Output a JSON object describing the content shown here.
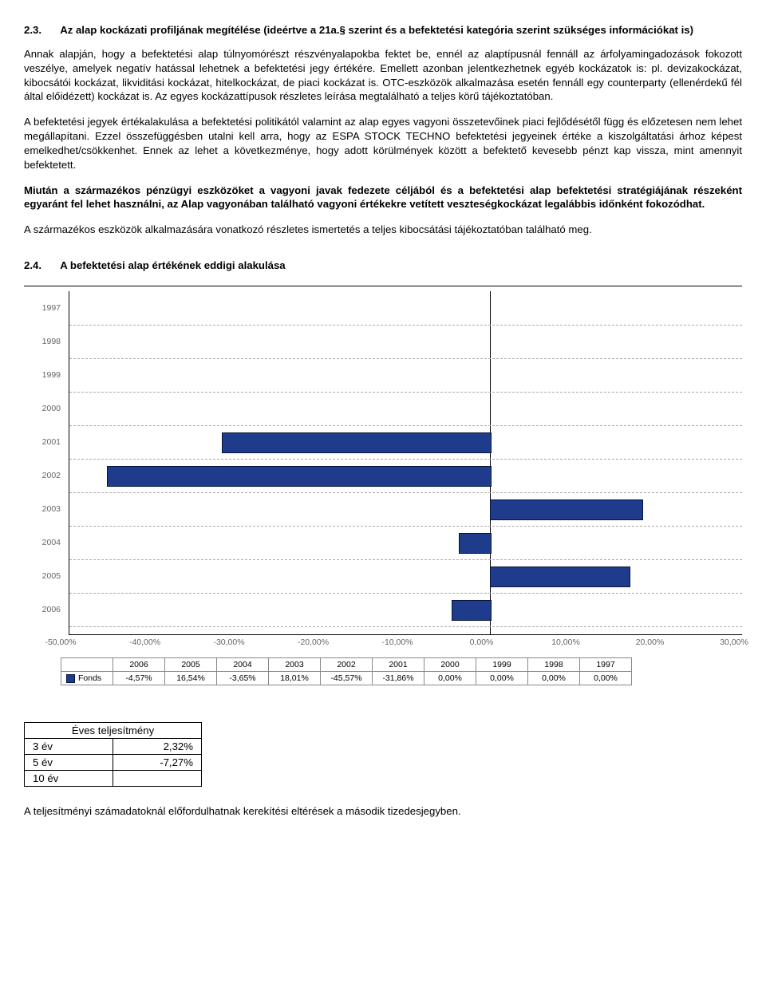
{
  "section23": {
    "num": "2.3.",
    "title": "Az alap kockázati profiljának megítélése (ideértve a 21a.§ szerint és a befektetési kategória szerint szükséges információkat is)",
    "p1": "Annak alapján, hogy a befektetési alap túlnyomórészt részvényalapokba fektet be, ennél az alaptípusnál fennáll az árfolyamingadozások fokozott veszélye, amelyek negatív hatással lehetnek a befektetési jegy értékére. Emellett azonban jelentkezhetnek egyéb kockázatok is: pl. devizakockázat, kibocsátói kockázat, likviditási kockázat, hitelkockázat, de piaci kockázat is. OTC-eszközök alkalmazása esetén fennáll egy counterparty (ellenérdekű fél által előidézett) kockázat is. Az egyes kockázattípusok részletes leírása megtalálható a teljes körű tájékoztatóban.",
    "p2": "A befektetési jegyek értékalakulása a befektetési politikától valamint az alap egyes vagyoni összetevőinek piaci fejlődésétől függ és előzetesen nem lehet megállapítani. Ezzel összefüggésben utalni kell arra, hogy az ESPA STOCK TECHNO befektetési jegyeinek értéke a kiszolgáltatási árhoz képest emelkedhet/csökkenhet. Ennek az lehet a következménye, hogy adott körülmények között a befektető kevesebb pénzt kap vissza, mint amennyit befektetett.",
    "p3_bold": "Miután a származékos pénzügyi eszközöket a vagyoni javak fedezete céljából és a befektetési alap befektetési stratégiájának részeként egyaránt fel lehet használni, az Alap vagyonában található vagyoni értékekre vetített veszteségkockázat legalábbis időnként fokozódhat.",
    "p4": "A származékos eszközök alkalmazására vonatkozó részletes ismertetés a teljes kibocsátási tájékoztatóban található meg."
  },
  "section24": {
    "num": "2.4.",
    "title": "A befektetési alap értékének eddigi alakulása"
  },
  "chart": {
    "type": "bar-horizontal",
    "years": [
      "1997",
      "1998",
      "1999",
      "2000",
      "2001",
      "2002",
      "2003",
      "2004",
      "2005",
      "2006"
    ],
    "values": [
      0.0,
      0.0,
      0.0,
      0.0,
      -31.86,
      -45.57,
      18.01,
      -3.65,
      16.54,
      -4.57
    ],
    "xmin": -50,
    "xmax": 30,
    "xtick_step": 10,
    "bar_color": "#1f3b8c",
    "bar_border": "#06143d",
    "grid_color": "#aaaaaa",
    "axis_color": "#000000",
    "background_color": "#ffffff",
    "y_font_color": "#666666",
    "font_size": 10.5,
    "fonds_label": "Fonds",
    "fonds_row_years": [
      "2006",
      "2005",
      "2004",
      "2003",
      "2002",
      "2001",
      "2000",
      "1999",
      "1998",
      "1997"
    ],
    "fonds_row_values": [
      "-4,57%",
      "16,54%",
      "-3,65%",
      "18,01%",
      "-45,57%",
      "-31,86%",
      "0,00%",
      "0,00%",
      "0,00%",
      "0,00%"
    ],
    "xtick_labels": [
      "-50,00%",
      "-40,00%",
      "-30,00%",
      "-20,00%",
      "-10,00%",
      "0,00%",
      "10,00%",
      "20,00%",
      "30,00%"
    ]
  },
  "perf": {
    "title": "Éves teljesítmény",
    "rows": [
      {
        "label": "3 év",
        "value": "2,32%"
      },
      {
        "label": "5 év",
        "value": "-7,27%"
      },
      {
        "label": "10 év",
        "value": ""
      }
    ]
  },
  "footnote": "A teljesítményi számadatoknál előfordulhatnak kerekítési eltérések a második tizedesjegyben."
}
